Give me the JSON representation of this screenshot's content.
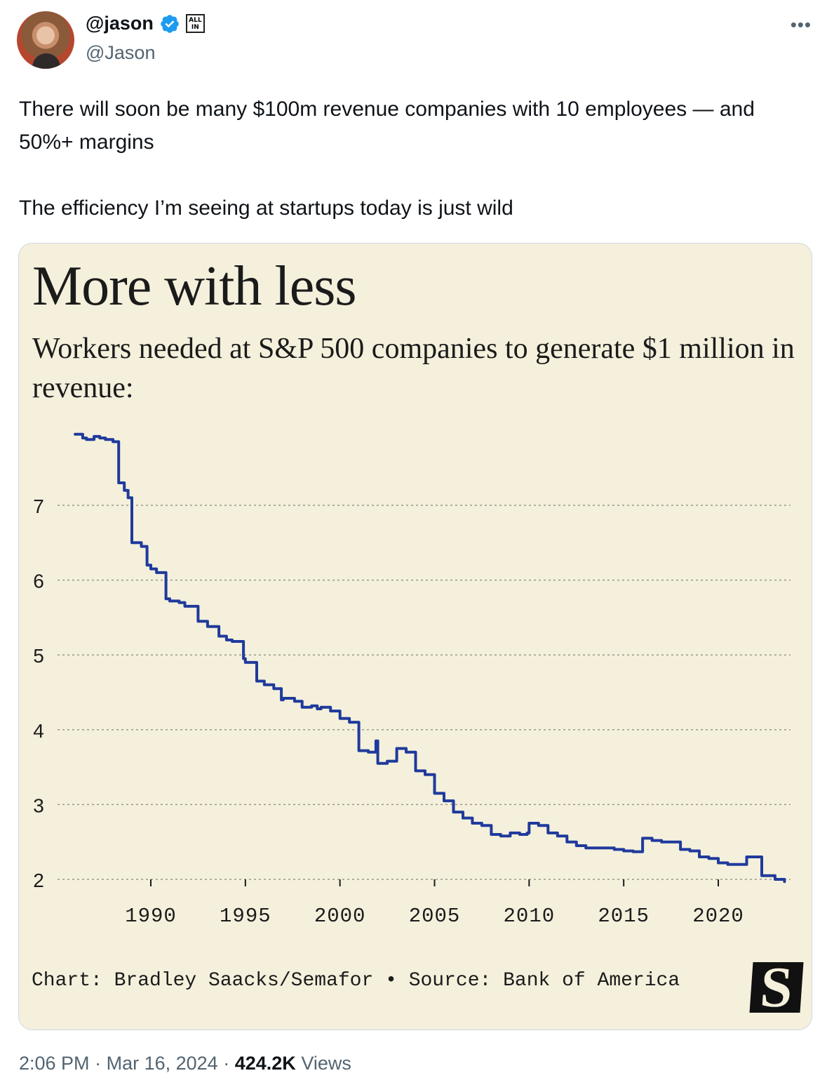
{
  "tweet": {
    "display_name": "@jason",
    "handle": "@Jason",
    "affiliation_badge": "ALL IN",
    "more_icon": "more-dots-icon",
    "verified_color": "#1d9bf0",
    "text_paragraphs": [
      "There will soon be many $100m revenue companies with 10 employees — and 50%+ margins",
      "The efficiency I’m seeing at startups today is just wild"
    ],
    "time": "2:06 PM",
    "date": "Mar 16, 2024",
    "separator": "·",
    "views_count": "424.2K",
    "views_label": "Views"
  },
  "chart_card": {
    "credit": "Chart: Bradley Saacks/Semafor • Source: Bank of America",
    "logo_letter": "S",
    "background": "#f4f0dc",
    "line_color": "#1f3a9c"
  },
  "chart_data": {
    "type": "line",
    "title": "More with less",
    "subtitle": "Workers needed at S&P 500 companies to generate $1 million in revenue:",
    "xlabel": "",
    "ylabel": "",
    "xlim": [
      1985.5,
      2024
    ],
    "ylim": [
      2,
      8
    ],
    "y_ticks": [
      2,
      3,
      4,
      5,
      6,
      7
    ],
    "x_ticks": [
      1990,
      1995,
      2000,
      2005,
      2010,
      2015,
      2020
    ],
    "grid": "horizontal dotted",
    "series": [
      {
        "x": [
          1986.0,
          1986.4,
          1986.6,
          1987.0,
          1987.3,
          1987.6,
          1988.0,
          1988.3,
          1988.6,
          1988.8,
          1989.0,
          1989.5,
          1989.8,
          1990.0,
          1990.3,
          1990.8,
          1991.0,
          1991.5,
          1991.8,
          1992.0,
          1992.5,
          1993.0,
          1993.6,
          1994.0,
          1994.3,
          1994.9,
          1995.0,
          1995.6,
          1996.0,
          1996.5,
          1996.9,
          1997.0,
          1997.6,
          1998.0,
          1998.5,
          1998.8,
          1999.0,
          1999.5,
          2000.0,
          2000.5,
          2001.0,
          2001.5,
          2001.9,
          2002.0,
          2002.5,
          2003.0,
          2003.5,
          2004.0,
          2004.5,
          2005.0,
          2005.5,
          2006.0,
          2006.5,
          2007.0,
          2007.5,
          2008.0,
          2008.5,
          2009.0,
          2009.5,
          2009.9,
          2010.0,
          2010.5,
          2011.0,
          2011.5,
          2012.0,
          2012.5,
          2013.0,
          2014.0,
          2014.5,
          2015.0,
          2015.5,
          2016.0,
          2016.5,
          2017.0,
          2017.5,
          2018.0,
          2018.5,
          2019.0,
          2019.5,
          2020.0,
          2020.5,
          2021.0,
          2021.5,
          2022.0,
          2022.3,
          2023.0,
          2023.5
        ],
        "y": [
          7.95,
          7.9,
          7.88,
          7.92,
          7.9,
          7.88,
          7.85,
          7.3,
          7.2,
          7.1,
          6.5,
          6.45,
          6.2,
          6.15,
          6.1,
          5.75,
          5.72,
          5.7,
          5.65,
          5.65,
          5.45,
          5.38,
          5.25,
          5.2,
          5.18,
          4.95,
          4.9,
          4.65,
          4.6,
          4.55,
          4.4,
          4.42,
          4.38,
          4.3,
          4.32,
          4.28,
          4.3,
          4.25,
          4.15,
          4.1,
          3.72,
          3.7,
          3.85,
          3.55,
          3.58,
          3.75,
          3.7,
          3.45,
          3.4,
          3.15,
          3.05,
          2.9,
          2.82,
          2.75,
          2.72,
          2.6,
          2.58,
          2.62,
          2.6,
          2.62,
          2.75,
          2.72,
          2.62,
          2.58,
          2.5,
          2.45,
          2.42,
          2.42,
          2.4,
          2.38,
          2.37,
          2.55,
          2.52,
          2.5,
          2.5,
          2.4,
          2.38,
          2.3,
          2.28,
          2.22,
          2.2,
          2.2,
          2.3,
          2.3,
          2.05,
          2.0,
          1.97
        ]
      }
    ]
  }
}
